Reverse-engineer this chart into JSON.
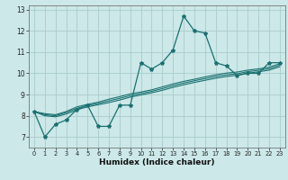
{
  "xlabel": "Humidex (Indice chaleur)",
  "bg_color": "#cce8e8",
  "grid_color": "#aacccc",
  "line_color": "#1a7070",
  "xlim": [
    -0.5,
    23.5
  ],
  "ylim": [
    6.5,
    13.2
  ],
  "xticks": [
    0,
    1,
    2,
    3,
    4,
    5,
    6,
    7,
    8,
    9,
    10,
    11,
    12,
    13,
    14,
    15,
    16,
    17,
    18,
    19,
    20,
    21,
    22,
    23
  ],
  "yticks": [
    7,
    8,
    9,
    10,
    11,
    12,
    13
  ],
  "series_main": [
    8.2,
    7.0,
    7.6,
    7.8,
    8.3,
    8.5,
    7.5,
    7.5,
    8.5,
    8.5,
    10.5,
    10.2,
    10.5,
    11.1,
    12.7,
    12.0,
    11.9,
    10.5,
    10.35,
    9.9,
    10.0,
    10.0,
    10.5,
    10.5
  ],
  "series_lines": [
    [
      8.2,
      8.05,
      8.0,
      8.15,
      8.35,
      8.48,
      8.58,
      8.7,
      8.82,
      8.95,
      9.05,
      9.15,
      9.28,
      9.42,
      9.54,
      9.65,
      9.75,
      9.85,
      9.93,
      9.98,
      10.08,
      10.14,
      10.22,
      10.38
    ],
    [
      8.2,
      8.0,
      7.95,
      8.08,
      8.28,
      8.42,
      8.52,
      8.62,
      8.74,
      8.88,
      8.98,
      9.08,
      9.2,
      9.34,
      9.46,
      9.57,
      9.67,
      9.77,
      9.85,
      9.91,
      10.01,
      10.07,
      10.15,
      10.31
    ],
    [
      8.2,
      8.1,
      8.05,
      8.2,
      8.42,
      8.54,
      8.64,
      8.78,
      8.9,
      9.03,
      9.12,
      9.22,
      9.36,
      9.5,
      9.62,
      9.72,
      9.83,
      9.93,
      10.01,
      10.06,
      10.15,
      10.21,
      10.29,
      10.45
    ]
  ]
}
